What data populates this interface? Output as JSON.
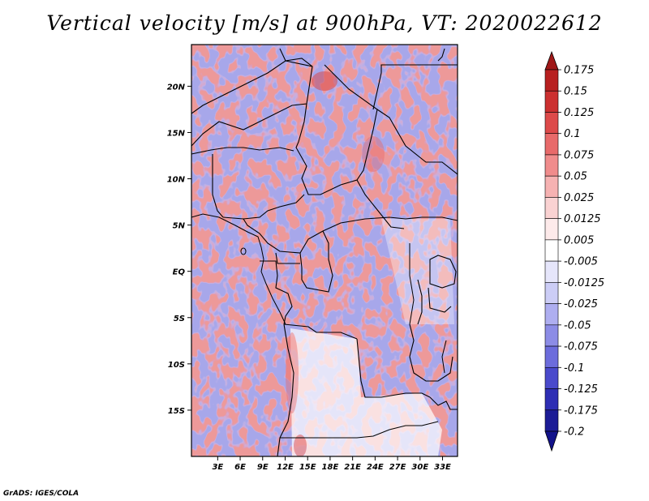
{
  "title": "Vertical velocity [m/s] at 900hPa, VT: 2020022612",
  "credit": "GrADS: IGES/COLA",
  "map": {
    "lat_range": [
      -20,
      24.5
    ],
    "lon_range": [
      -0.5,
      35
    ],
    "lat_labels": [
      {
        "lat": 20,
        "text": "20N"
      },
      {
        "lat": 15,
        "text": "15N"
      },
      {
        "lat": 10,
        "text": "10N"
      },
      {
        "lat": 5,
        "text": "5N"
      },
      {
        "lat": 0,
        "text": "EQ"
      },
      {
        "lat": -5,
        "text": "5S"
      },
      {
        "lat": -10,
        "text": "10S"
      },
      {
        "lat": -15,
        "text": "15S"
      }
    ],
    "lon_labels": [
      {
        "lon": 3,
        "text": "3E"
      },
      {
        "lon": 6,
        "text": "6E"
      },
      {
        "lon": 9,
        "text": "9E"
      },
      {
        "lon": 12,
        "text": "12E"
      },
      {
        "lon": 15,
        "text": "15E"
      },
      {
        "lon": 18,
        "text": "18E"
      },
      {
        "lon": 21,
        "text": "21E"
      },
      {
        "lon": 24,
        "text": "24E"
      },
      {
        "lon": 27,
        "text": "27E"
      },
      {
        "lon": 30,
        "text": "30E"
      },
      {
        "lon": 33,
        "text": "33E"
      }
    ]
  },
  "colorbar": {
    "labels": [
      "0.175",
      "0.15",
      "0.125",
      "0.1",
      "0.075",
      "0.05",
      "0.025",
      "0.0125",
      "0.005",
      "-0.005",
      "-0.0125",
      "-0.025",
      "-0.05",
      "-0.075",
      "-0.1",
      "-0.125",
      "-0.175",
      "-0.2"
    ],
    "colors": [
      "#a01818",
      "#b82020",
      "#cc3030",
      "#dd4a4a",
      "#e86a6a",
      "#f08c8c",
      "#f6b2b2",
      "#fad2d2",
      "#fdeaea",
      "#ffffff",
      "#e6e6fb",
      "#cccdf6",
      "#aeaef0",
      "#8c8ce6",
      "#6c6cdc",
      "#4a4acc",
      "#2e2eb4",
      "#1c1c96",
      "#12128a"
    ]
  }
}
